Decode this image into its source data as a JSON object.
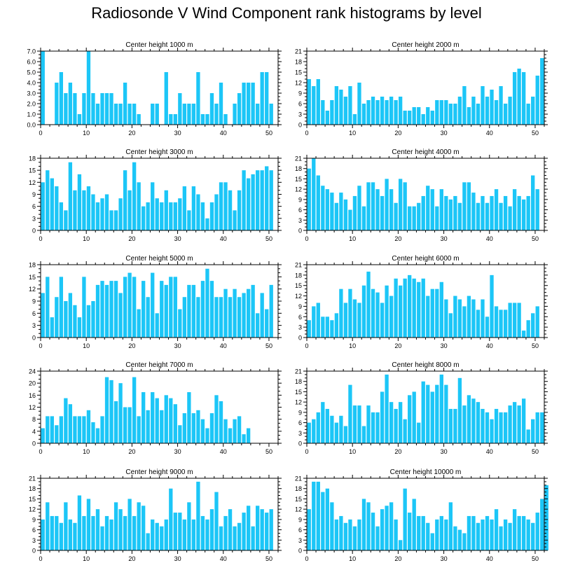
{
  "title": "Radiosonde V Wind Component rank histograms by level",
  "bar_color": "#1cc6f7",
  "chart_data": [
    {
      "type": "bar",
      "title": "Center height 1000 m",
      "xlabel": "",
      "ylabel": "",
      "xlim": [
        0,
        52
      ],
      "ylim": [
        0,
        7
      ],
      "yticks": [
        0,
        1,
        2,
        3,
        4,
        5,
        6,
        7
      ],
      "ytick_labels": [
        "0.0",
        "1.0",
        "2.0",
        "3.0",
        "4.0",
        "5.0",
        "6.0",
        "7.0"
      ],
      "xticks": [
        0,
        10,
        20,
        30,
        40,
        50
      ],
      "ytick_side": "left",
      "values": [
        7,
        0,
        0,
        4,
        5,
        3,
        4,
        3,
        1,
        3,
        7,
        3,
        2,
        3,
        3,
        3,
        2,
        2,
        4,
        2,
        2,
        1,
        0,
        0,
        2,
        2,
        0,
        5,
        1,
        1,
        3,
        2,
        2,
        2,
        5,
        1,
        1,
        3,
        2,
        4,
        1,
        0,
        2,
        3,
        4,
        4,
        4,
        2,
        5,
        5,
        2
      ]
    },
    {
      "type": "bar",
      "title": "Center height 2000 m",
      "xlabel": "",
      "ylabel": "",
      "xlim": [
        0,
        52
      ],
      "ylim": [
        0,
        21
      ],
      "yticks": [
        0,
        3,
        6,
        9,
        12,
        15,
        18,
        21
      ],
      "ytick_labels": [
        "0",
        "3",
        "6",
        "9",
        "12",
        "15",
        "18",
        "21"
      ],
      "xticks": [
        0,
        10,
        20,
        30,
        40,
        50
      ],
      "ytick_side": "left",
      "values": [
        13,
        11,
        13,
        7,
        4,
        7,
        11,
        10,
        8,
        11,
        3,
        12,
        6,
        7,
        8,
        7,
        8,
        7,
        8,
        7,
        8,
        4,
        4,
        5,
        5,
        3,
        5,
        4,
        7,
        7,
        7,
        6,
        6,
        8,
        11,
        5,
        8,
        6,
        11,
        8,
        10,
        7,
        11,
        6,
        8,
        15,
        16,
        15,
        6,
        8,
        14,
        19
      ]
    },
    {
      "type": "bar",
      "title": "Center height 3000 m",
      "xlabel": "",
      "ylabel": "",
      "xlim": [
        0,
        52
      ],
      "ylim": [
        0,
        18
      ],
      "yticks": [
        0,
        3,
        6,
        9,
        12,
        15,
        18
      ],
      "ytick_labels": [
        "0",
        "3",
        "6",
        "9",
        "12",
        "15",
        "18"
      ],
      "xticks": [
        0,
        10,
        20,
        30,
        40,
        50
      ],
      "ytick_side": "left",
      "values": [
        12,
        15,
        13,
        11,
        7,
        5,
        17,
        10,
        14,
        10,
        11,
        9,
        7,
        8,
        9,
        5,
        5,
        8,
        15,
        10,
        17,
        12,
        6,
        7,
        12,
        8,
        7,
        10,
        7,
        7,
        8,
        11,
        5,
        11,
        9,
        7,
        3,
        7,
        9,
        12,
        12,
        10,
        5,
        10,
        15,
        13,
        14,
        15,
        15,
        16,
        15
      ]
    },
    {
      "type": "bar",
      "title": "Center height 4000 m",
      "xlabel": "",
      "ylabel": "",
      "xlim": [
        0,
        52
      ],
      "ylim": [
        0,
        21
      ],
      "yticks": [
        0,
        3,
        6,
        9,
        12,
        15,
        18,
        21
      ],
      "ytick_labels": [
        "0",
        "3",
        "6",
        "9",
        "12",
        "15",
        "18",
        "21"
      ],
      "xticks": [
        0,
        10,
        20,
        30,
        40,
        50
      ],
      "ytick_side": "left",
      "values": [
        18,
        21,
        16,
        13,
        12,
        11,
        8,
        11,
        9,
        6,
        10,
        13,
        7,
        14,
        14,
        12,
        10,
        15,
        12,
        8,
        15,
        14,
        7,
        7,
        8,
        10,
        13,
        12,
        7,
        12,
        10,
        9,
        10,
        8,
        14,
        14,
        11,
        8,
        10,
        8,
        10,
        12,
        8,
        10,
        7,
        12,
        10,
        9,
        10,
        16,
        12
      ]
    },
    {
      "type": "bar",
      "title": "Center height 5000 m",
      "xlabel": "",
      "ylabel": "",
      "xlim": [
        0,
        52
      ],
      "ylim": [
        0,
        18
      ],
      "yticks": [
        0,
        3,
        6,
        9,
        12,
        15,
        18
      ],
      "ytick_labels": [
        "0",
        "3",
        "6",
        "9",
        "12",
        "15",
        "18"
      ],
      "xticks": [
        0,
        10,
        20,
        30,
        40,
        50
      ],
      "ytick_side": "left",
      "values": [
        11,
        15,
        5,
        10,
        15,
        9,
        11,
        8,
        5,
        15,
        8,
        9,
        13,
        14,
        13,
        14,
        14,
        11,
        15,
        16,
        15,
        7,
        14,
        10,
        16,
        6,
        14,
        13,
        15,
        15,
        7,
        10,
        13,
        13,
        10,
        14,
        17,
        14,
        10,
        10,
        12,
        10,
        12,
        10,
        11,
        12,
        13,
        6,
        11,
        7,
        13
      ]
    },
    {
      "type": "bar",
      "title": "Center height 6000 m",
      "xlabel": "",
      "ylabel": "",
      "xlim": [
        0,
        52
      ],
      "ylim": [
        0,
        21
      ],
      "yticks": [
        0,
        3,
        6,
        9,
        12,
        15,
        18,
        21
      ],
      "ytick_labels": [
        "0",
        "3",
        "6",
        "9",
        "12",
        "15",
        "18",
        "21"
      ],
      "xticks": [
        0,
        10,
        20,
        30,
        40,
        50
      ],
      "ytick_side": "left",
      "values": [
        5,
        9,
        10,
        6,
        6,
        5,
        7,
        14,
        10,
        14,
        11,
        10,
        15,
        19,
        14,
        13,
        10,
        15,
        12,
        17,
        15,
        17,
        18,
        17,
        16,
        17,
        12,
        14,
        14,
        16,
        11,
        7,
        12,
        11,
        9,
        12,
        11,
        8,
        11,
        6,
        18,
        9,
        8,
        8,
        10,
        10,
        10,
        2,
        5,
        7,
        9
      ]
    },
    {
      "type": "bar",
      "title": "Center height 7000 m",
      "xlabel": "",
      "ylabel": "",
      "xlim": [
        0,
        52
      ],
      "ylim": [
        0,
        24
      ],
      "yticks": [
        0,
        4,
        8,
        12,
        16,
        20,
        24
      ],
      "ytick_labels": [
        "0",
        "4",
        "8",
        "12",
        "16",
        "20",
        "24"
      ],
      "xticks": [
        0,
        10,
        20,
        30,
        40,
        50
      ],
      "ytick_side": "left",
      "values": [
        5,
        9,
        9,
        6,
        9,
        15,
        13,
        9,
        9,
        9,
        11,
        7,
        5,
        9,
        22,
        21,
        14,
        20,
        12,
        12,
        22,
        9,
        17,
        11,
        17,
        15,
        11,
        16,
        15,
        13,
        6,
        10,
        17,
        10,
        11,
        8,
        5,
        10,
        16,
        14,
        8,
        5,
        8,
        9,
        3,
        5,
        0,
        0,
        0,
        0,
        0
      ]
    },
    {
      "type": "bar",
      "title": "Center height 8000 m",
      "xlabel": "",
      "ylabel": "",
      "xlim": [
        0,
        52
      ],
      "ylim": [
        0,
        21
      ],
      "yticks": [
        0,
        3,
        6,
        9,
        12,
        15,
        18,
        21
      ],
      "ytick_labels": [
        "0",
        "3",
        "6",
        "9",
        "12",
        "15",
        "18",
        "21"
      ],
      "xticks": [
        0,
        10,
        20,
        30,
        40,
        50
      ],
      "ytick_side": "left",
      "values": [
        6,
        7,
        9,
        12,
        10,
        8,
        6,
        8,
        5,
        17,
        11,
        11,
        5,
        11,
        9,
        9,
        15,
        20,
        12,
        10,
        12,
        7,
        14,
        15,
        6,
        18,
        17,
        15,
        17,
        20,
        17,
        10,
        10,
        19,
        11,
        14,
        13,
        12,
        10,
        9,
        7,
        10,
        9,
        9,
        11,
        12,
        11,
        13,
        4,
        7,
        9,
        9
      ]
    },
    {
      "type": "bar",
      "title": "Center height 9000 m",
      "xlabel": "",
      "ylabel": "",
      "xlim": [
        0,
        52
      ],
      "ylim": [
        0,
        21
      ],
      "yticks": [
        0,
        3,
        6,
        9,
        12,
        15,
        18,
        21
      ],
      "ytick_labels": [
        "0",
        "3",
        "6",
        "9",
        "12",
        "15",
        "18",
        "21"
      ],
      "xticks": [
        0,
        10,
        20,
        30,
        40,
        50
      ],
      "ytick_side": "left",
      "values": [
        9,
        14,
        10,
        10,
        8,
        14,
        9,
        8,
        16,
        10,
        15,
        10,
        12,
        7,
        10,
        9,
        14,
        12,
        10,
        15,
        10,
        14,
        13,
        5,
        9,
        8,
        7,
        9,
        18,
        11,
        11,
        9,
        14,
        9,
        20,
        10,
        9,
        12,
        17,
        7,
        10,
        12,
        7,
        8,
        11,
        13,
        7,
        13,
        12,
        11,
        12
      ]
    },
    {
      "type": "bar",
      "title": "Center height 10000 m",
      "xlabel": "",
      "ylabel": "",
      "xlim": [
        0,
        52
      ],
      "ylim": [
        0,
        21
      ],
      "yticks": [
        0,
        3,
        6,
        9,
        12,
        15,
        18,
        21
      ],
      "ytick_labels": [
        "0",
        "3",
        "6",
        "9",
        "12",
        "15",
        "18",
        "21"
      ],
      "xticks": [
        0,
        10,
        20,
        30,
        40,
        50
      ],
      "ytick_side": "left",
      "values": [
        12,
        20,
        20,
        17,
        18,
        14,
        9,
        10,
        8,
        9,
        7,
        9,
        15,
        14,
        11,
        7,
        12,
        13,
        14,
        9,
        3,
        18,
        11,
        15,
        10,
        10,
        8,
        5,
        9,
        10,
        9,
        14,
        7,
        6,
        5,
        10,
        10,
        8,
        9,
        10,
        9,
        12,
        7,
        9,
        8,
        12,
        10,
        10,
        9,
        8,
        11,
        15,
        19
      ]
    }
  ]
}
